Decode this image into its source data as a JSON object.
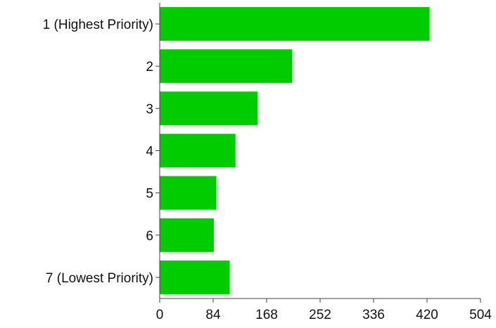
{
  "chart_data": {
    "type": "bar",
    "orientation": "horizontal",
    "categories": [
      "1 (Highest Priority)",
      "2",
      "3",
      "4",
      "5",
      "6",
      "7 (Lowest Priority)"
    ],
    "values": [
      424,
      208,
      154,
      119,
      89,
      85,
      110
    ],
    "xlim": [
      0,
      504
    ],
    "xticks": [
      "0",
      "84",
      "168",
      "252",
      "336",
      "420",
      "504"
    ],
    "bar_color": "#00cc00",
    "grid": false,
    "title": "",
    "xlabel": "",
    "ylabel": ""
  }
}
